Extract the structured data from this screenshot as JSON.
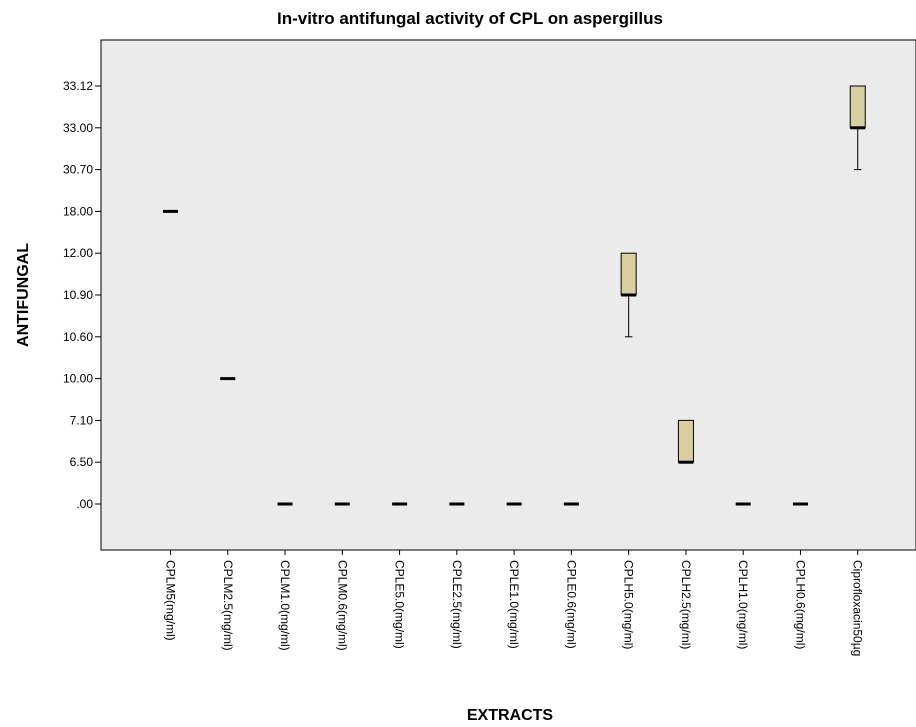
{
  "chart_data": {
    "type": "box",
    "title": "In-vitro antifungal activity of CPL on aspergillus",
    "xlabel": "EXTRACTS",
    "ylabel": "ANTIFUNGAL",
    "y_scale": "categorical",
    "y_ticks": [
      ".00",
      "6.50",
      "7.10",
      "10.00",
      "10.60",
      "10.90",
      "12.00",
      "18.00",
      "30.70",
      "33.00",
      "33.12"
    ],
    "grid": false,
    "background": "#ebebeb",
    "box_color": "#d8d0a0",
    "categories": [
      "CPLM5(mg/ml)",
      "CPLM2.5(mg/ml)",
      "CPLM1.0(mg/ml)",
      "CPLM0.6(mg/ml)",
      "CPLE5.0(mg/ml)",
      "CPLE2.5(mg/ml)",
      "CPLE1.0(mg/ml)",
      "CPLE0.6(mg/ml)",
      "CPLH5.0(mg/ml)",
      "CPLH2.5(mg/ml)",
      "CPLH1.0(mg/ml)",
      "CPLH0.6(mg/ml)",
      "Ciprofloxacin50µg"
    ],
    "boxes": [
      {
        "min": 18.0,
        "q1": 18.0,
        "median": 18.0,
        "q3": 18.0,
        "max": 18.0
      },
      {
        "min": 10.0,
        "q1": 10.0,
        "median": 10.0,
        "q3": 10.0,
        "max": 10.0
      },
      {
        "min": 0.0,
        "q1": 0.0,
        "median": 0.0,
        "q3": 0.0,
        "max": 0.0
      },
      {
        "min": 0.0,
        "q1": 0.0,
        "median": 0.0,
        "q3": 0.0,
        "max": 0.0
      },
      {
        "min": 0.0,
        "q1": 0.0,
        "median": 0.0,
        "q3": 0.0,
        "max": 0.0
      },
      {
        "min": 0.0,
        "q1": 0.0,
        "median": 0.0,
        "q3": 0.0,
        "max": 0.0
      },
      {
        "min": 0.0,
        "q1": 0.0,
        "median": 0.0,
        "q3": 0.0,
        "max": 0.0
      },
      {
        "min": 0.0,
        "q1": 0.0,
        "median": 0.0,
        "q3": 0.0,
        "max": 0.0
      },
      {
        "min": 10.6,
        "q1": 10.9,
        "median": 10.9,
        "q3": 12.0,
        "max": 12.0
      },
      {
        "min": 6.5,
        "q1": 6.5,
        "median": 6.5,
        "q3": 7.1,
        "max": 7.1
      },
      {
        "min": 0.0,
        "q1": 0.0,
        "median": 0.0,
        "q3": 0.0,
        "max": 0.0
      },
      {
        "min": 0.0,
        "q1": 0.0,
        "median": 0.0,
        "q3": 0.0,
        "max": 0.0
      },
      {
        "min": 30.7,
        "q1": 33.0,
        "median": 33.0,
        "q3": 33.12,
        "max": 33.12
      }
    ]
  }
}
